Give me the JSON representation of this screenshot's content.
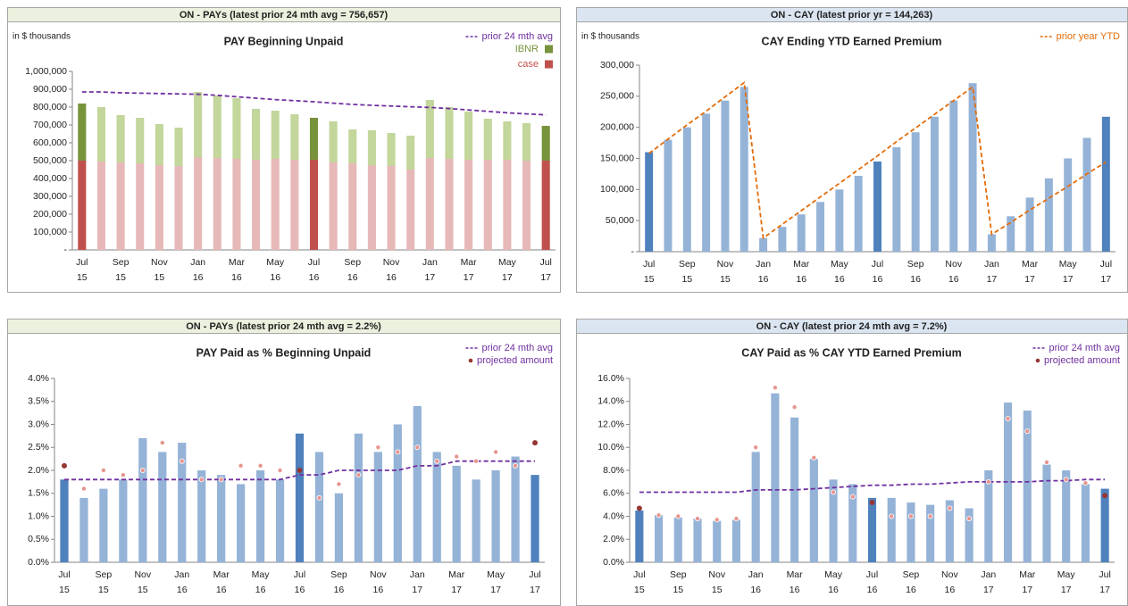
{
  "chart_data": [
    {
      "type": "bar",
      "stacked": true,
      "header": "ON - PAYs (latest prior 24 mth avg = 756,657)",
      "header_color": "#ebf1de",
      "title": "PAY Beginning Unpaid",
      "note": "in $ thousands",
      "categories": [
        [
          "Jul",
          "15"
        ],
        null,
        [
          "Sep",
          "15"
        ],
        null,
        [
          "Nov",
          "15"
        ],
        null,
        [
          "Jan",
          "16"
        ],
        null,
        [
          "Mar",
          "16"
        ],
        null,
        [
          "May",
          "16"
        ],
        null,
        [
          "Jul",
          "16"
        ],
        null,
        [
          "Sep",
          "16"
        ],
        null,
        [
          "Nov",
          "16"
        ],
        null,
        [
          "Jan",
          "17"
        ],
        null,
        [
          "Mar",
          "17"
        ],
        null,
        [
          "May",
          "17"
        ],
        null,
        [
          "Jul",
          "17"
        ]
      ],
      "highlight_indices": [
        0,
        12,
        24
      ],
      "series": [
        {
          "name": "prior 24 mth avg",
          "type": "line",
          "dashed": true,
          "color": "#7030a0",
          "values": [
            885000,
            885000,
            880000,
            878000,
            876000,
            874000,
            872000,
            866000,
            858000,
            850000,
            842000,
            836000,
            830000,
            822000,
            815000,
            810000,
            806000,
            802000,
            798000,
            792000,
            784000,
            776000,
            768000,
            762000,
            756657
          ]
        },
        {
          "name": "IBNR",
          "type": "bar",
          "color": "#c3d69b",
          "highlight_color": "#77933c",
          "values": [
            320000,
            305000,
            265000,
            255000,
            230000,
            215000,
            365000,
            350000,
            340000,
            285000,
            270000,
            255000,
            235000,
            230000,
            190000,
            195000,
            185000,
            190000,
            325000,
            290000,
            270000,
            230000,
            215000,
            210000,
            195000
          ]
        },
        {
          "name": "case",
          "type": "bar",
          "color": "#e6b9b8",
          "highlight_color": "#c0504d",
          "values": [
            500000,
            495000,
            490000,
            485000,
            475000,
            470000,
            520000,
            515000,
            510000,
            505000,
            510000,
            505000,
            505000,
            490000,
            485000,
            475000,
            470000,
            450000,
            515000,
            510000,
            505000,
            505000,
            505000,
            500000,
            500000
          ]
        }
      ],
      "ylim": [
        0,
        1000000
      ],
      "yticks": [
        {
          "value": 0,
          "label": "-"
        },
        {
          "value": 100000,
          "label": "100,000"
        },
        {
          "value": 200000,
          "label": "200,000"
        },
        {
          "value": 300000,
          "label": "300,000"
        },
        {
          "value": 400000,
          "label": "400,000"
        },
        {
          "value": 500000,
          "label": "500,000"
        },
        {
          "value": 600000,
          "label": "600,000"
        },
        {
          "value": 700000,
          "label": "700,000"
        },
        {
          "value": 800000,
          "label": "800,000"
        },
        {
          "value": 900000,
          "label": "900,000"
        },
        {
          "value": 1000000,
          "label": "1,000,000"
        }
      ],
      "legend": "upper-right"
    },
    {
      "type": "bar",
      "header": "ON - CAY (latest prior yr = 144,263)",
      "header_color": "#dbe5f1",
      "title": "CAY Ending YTD Earned Premium",
      "note": "in $ thousands",
      "categories": [
        [
          "Jul",
          "15"
        ],
        null,
        [
          "Sep",
          "15"
        ],
        null,
        [
          "Nov",
          "15"
        ],
        null,
        [
          "Jan",
          "16"
        ],
        null,
        [
          "Mar",
          "16"
        ],
        null,
        [
          "May",
          "16"
        ],
        null,
        [
          "Jul",
          "16"
        ],
        null,
        [
          "Sep",
          "16"
        ],
        null,
        [
          "Nov",
          "16"
        ],
        null,
        [
          "Jan",
          "17"
        ],
        null,
        [
          "Mar",
          "17"
        ],
        null,
        [
          "May",
          "17"
        ],
        null,
        [
          "Jul",
          "17"
        ]
      ],
      "highlight_indices": [
        0,
        12,
        24
      ],
      "series": [
        {
          "name": "prior year YTD",
          "type": "line",
          "dashed": true,
          "color": "#e46c0a",
          "values": [
            158000,
            181000,
            204000,
            226000,
            249000,
            272000,
            22000,
            44000,
            66000,
            88000,
            110000,
            132000,
            154000,
            177000,
            199000,
            221000,
            243000,
            265000,
            28000,
            47000,
            67000,
            86000,
            105000,
            125000,
            144263
          ]
        },
        {
          "name": "CAY Ending YTD Earned Premium",
          "legend": false,
          "type": "bar",
          "color": "#95b3d7",
          "highlight_color": "#4f81bd",
          "values": [
            160000,
            180000,
            200000,
            222000,
            243000,
            265000,
            22000,
            40000,
            60000,
            80000,
            100000,
            122000,
            145000,
            168000,
            192000,
            217000,
            243000,
            271000,
            28000,
            57000,
            87000,
            118000,
            150000,
            183000,
            217000
          ]
        }
      ],
      "ylim": [
        0,
        300000
      ],
      "yticks": [
        {
          "value": 0,
          "label": "-"
        },
        {
          "value": 50000,
          "label": "50,000"
        },
        {
          "value": 100000,
          "label": "100,000"
        },
        {
          "value": 150000,
          "label": "150,000"
        },
        {
          "value": 200000,
          "label": "200,000"
        },
        {
          "value": 250000,
          "label": "250,000"
        },
        {
          "value": 300000,
          "label": "300,000"
        }
      ],
      "legend": "upper-right"
    },
    {
      "type": "bar",
      "header": "ON - PAYs (latest prior 24 mth avg = 2.2%)",
      "header_color": "#ebf1de",
      "title": "PAY Paid as % Beginning Unpaid",
      "categories": [
        [
          "Jul",
          "15"
        ],
        null,
        [
          "Sep",
          "15"
        ],
        null,
        [
          "Nov",
          "15"
        ],
        null,
        [
          "Jan",
          "16"
        ],
        null,
        [
          "Mar",
          "16"
        ],
        null,
        [
          "May",
          "16"
        ],
        null,
        [
          "Jul",
          "16"
        ],
        null,
        [
          "Sep",
          "16"
        ],
        null,
        [
          "Nov",
          "16"
        ],
        null,
        [
          "Jan",
          "17"
        ],
        null,
        [
          "Mar",
          "17"
        ],
        null,
        [
          "May",
          "17"
        ],
        null,
        [
          "Jul",
          "17"
        ]
      ],
      "highlight_indices": [
        0,
        12,
        24
      ],
      "series": [
        {
          "name": "PAY Paid as % Beginning Unpaid",
          "legend": false,
          "type": "bar",
          "color": "#95b3d7",
          "highlight_color": "#4f81bd",
          "values": [
            1.8,
            1.4,
            1.6,
            1.8,
            2.7,
            2.4,
            2.6,
            2.0,
            1.9,
            1.7,
            2.0,
            1.8,
            2.8,
            2.4,
            1.5,
            2.8,
            2.4,
            3.0,
            3.4,
            2.4,
            2.1,
            1.8,
            2.0,
            2.3,
            1.9
          ]
        },
        {
          "name": "prior 24 mth avg",
          "type": "line",
          "dashed": true,
          "color": "#7030a0",
          "values": [
            1.8,
            1.8,
            1.8,
            1.8,
            1.8,
            1.8,
            1.8,
            1.8,
            1.8,
            1.8,
            1.8,
            1.8,
            1.9,
            1.9,
            2.0,
            2.0,
            2.0,
            2.0,
            2.1,
            2.1,
            2.2,
            2.2,
            2.2,
            2.2,
            2.2
          ]
        },
        {
          "name": "projected amount",
          "type": "scatter",
          "color": "#e6958f",
          "highlight_color": "#953735",
          "values": [
            2.1,
            1.6,
            2.0,
            1.9,
            2.0,
            2.6,
            2.2,
            1.8,
            1.8,
            2.1,
            2.1,
            2.0,
            2.0,
            1.4,
            1.7,
            1.9,
            2.5,
            2.4,
            2.5,
            2.2,
            2.3,
            2.2,
            2.4,
            2.1,
            2.6
          ]
        }
      ],
      "ylim": [
        0,
        4.0
      ],
      "yticks": [
        {
          "value": 0,
          "label": "0.0%"
        },
        {
          "value": 0.5,
          "label": "0.5%"
        },
        {
          "value": 1.0,
          "label": "1.0%"
        },
        {
          "value": 1.5,
          "label": "1.5%"
        },
        {
          "value": 2.0,
          "label": "2.0%"
        },
        {
          "value": 2.5,
          "label": "2.5%"
        },
        {
          "value": 3.0,
          "label": "3.0%"
        },
        {
          "value": 3.5,
          "label": "3.5%"
        },
        {
          "value": 4.0,
          "label": "4.0%"
        }
      ],
      "legend": "upper-right"
    },
    {
      "type": "bar",
      "header": "ON - CAY (latest prior 24 mth avg = 7.2%)",
      "header_color": "#dbe5f1",
      "title": "CAY Paid as % CAY YTD Earned Premium",
      "categories": [
        [
          "Jul",
          "15"
        ],
        null,
        [
          "Sep",
          "15"
        ],
        null,
        [
          "Nov",
          "15"
        ],
        null,
        [
          "Jan",
          "16"
        ],
        null,
        [
          "Mar",
          "16"
        ],
        null,
        [
          "May",
          "16"
        ],
        null,
        [
          "Jul",
          "16"
        ],
        null,
        [
          "Sep",
          "16"
        ],
        null,
        [
          "Nov",
          "16"
        ],
        null,
        [
          "Jan",
          "17"
        ],
        null,
        [
          "Mar",
          "17"
        ],
        null,
        [
          "May",
          "17"
        ],
        null,
        [
          "Jul",
          "17"
        ]
      ],
      "highlight_indices": [
        0,
        12,
        24
      ],
      "series": [
        {
          "name": "CAY Paid as % CAY YTD Earned Premium",
          "legend": false,
          "type": "bar",
          "color": "#95b3d7",
          "highlight_color": "#4f81bd",
          "values": [
            4.5,
            4.1,
            3.9,
            3.8,
            3.6,
            3.7,
            9.6,
            14.7,
            12.6,
            9.0,
            7.2,
            6.8,
            5.6,
            5.6,
            5.2,
            5.0,
            5.4,
            4.7,
            8.0,
            13.9,
            13.2,
            8.5,
            8.0,
            6.8,
            6.4
          ]
        },
        {
          "name": "prior 24 mth avg",
          "type": "line",
          "dashed": true,
          "color": "#7030a0",
          "values": [
            6.1,
            6.1,
            6.1,
            6.1,
            6.1,
            6.1,
            6.3,
            6.3,
            6.3,
            6.4,
            6.5,
            6.6,
            6.7,
            6.7,
            6.8,
            6.8,
            6.9,
            7.0,
            7.0,
            7.0,
            7.0,
            7.1,
            7.1,
            7.2,
            7.2
          ]
        },
        {
          "name": "projected amount",
          "type": "scatter",
          "color": "#e6958f",
          "highlight_color": "#953735",
          "values": [
            4.7,
            4.1,
            4.0,
            3.8,
            3.7,
            3.8,
            10.0,
            15.2,
            13.5,
            9.1,
            6.1,
            5.7,
            5.2,
            4.0,
            4.0,
            4.0,
            4.7,
            3.8,
            7.0,
            12.5,
            11.4,
            8.7,
            7.2,
            6.9,
            5.8
          ]
        }
      ],
      "ylim": [
        0,
        16.0
      ],
      "yticks": [
        {
          "value": 0,
          "label": "0.0%"
        },
        {
          "value": 2,
          "label": "2.0%"
        },
        {
          "value": 4,
          "label": "4.0%"
        },
        {
          "value": 6,
          "label": "6.0%"
        },
        {
          "value": 8,
          "label": "8.0%"
        },
        {
          "value": 10,
          "label": "10.0%"
        },
        {
          "value": 12,
          "label": "12.0%"
        },
        {
          "value": 14,
          "label": "14.0%"
        },
        {
          "value": 16,
          "label": "16.0%"
        }
      ],
      "legend": "upper-right"
    }
  ]
}
